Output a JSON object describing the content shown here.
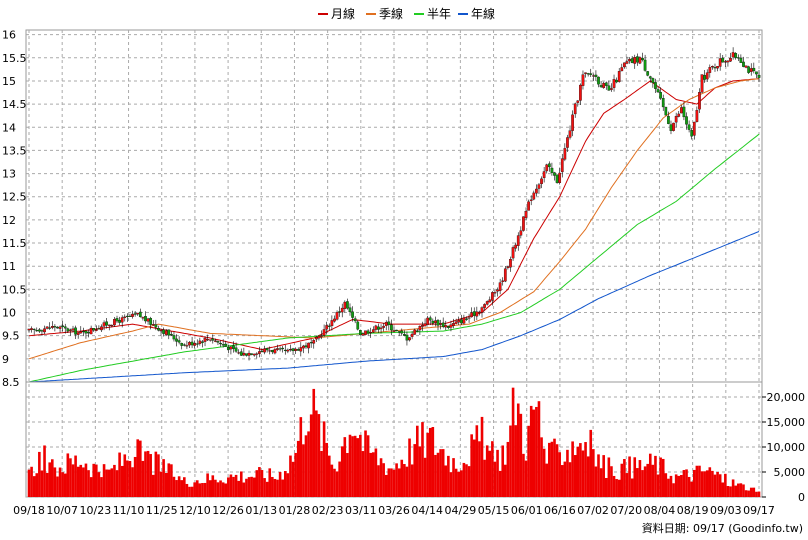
{
  "chart_data": [
    {
      "type": "candlestick",
      "legend": [
        {
          "name": "月線",
          "color": "#cc0000"
        },
        {
          "name": "季線",
          "color": "#e07020"
        },
        {
          "name": "半年",
          "color": "#22cc22"
        },
        {
          "name": "年線",
          "color": "#1155cc"
        }
      ],
      "legend_position": "top-center",
      "yticks": [
        "16",
        "15.5",
        "15",
        "14.5",
        "14",
        "13.5",
        "13",
        "12.5",
        "12",
        "11.5",
        "11",
        "10.5",
        "10",
        "9.5",
        "9",
        "8.5"
      ],
      "ytick_values": [
        16,
        15.5,
        15,
        14.5,
        14,
        13.5,
        13,
        12.5,
        12,
        11.5,
        11,
        10.5,
        10,
        9.5,
        9,
        8.5
      ],
      "ylim": [
        8.5,
        16.1
      ],
      "grid": true,
      "colors": {
        "up": "#ee1111",
        "down": "#119911"
      },
      "close_key": [
        [
          0,
          9.6
        ],
        [
          10,
          9.7
        ],
        [
          20,
          9.55
        ],
        [
          30,
          9.75
        ],
        [
          42,
          9.95
        ],
        [
          52,
          9.6
        ],
        [
          60,
          9.3
        ],
        [
          70,
          9.45
        ],
        [
          82,
          9.1
        ],
        [
          92,
          9.2
        ],
        [
          100,
          9.15
        ],
        [
          110,
          9.35
        ],
        [
          116,
          9.75
        ],
        [
          122,
          10.2
        ],
        [
          128,
          9.55
        ],
        [
          138,
          9.75
        ],
        [
          146,
          9.45
        ],
        [
          154,
          9.85
        ],
        [
          162,
          9.7
        ],
        [
          170,
          9.9
        ],
        [
          176,
          10.15
        ],
        [
          182,
          10.6
        ],
        [
          188,
          11.5
        ],
        [
          194,
          12.5
        ],
        [
          200,
          13.15
        ],
        [
          204,
          12.85
        ],
        [
          210,
          14.2
        ],
        [
          214,
          15.1
        ],
        [
          218,
          15.15
        ],
        [
          224,
          14.75
        ],
        [
          230,
          15.35
        ],
        [
          236,
          15.5
        ],
        [
          240,
          15.1
        ],
        [
          244,
          14.55
        ],
        [
          248,
          14.0
        ],
        [
          252,
          14.4
        ],
        [
          256,
          13.75
        ],
        [
          260,
          15.05
        ],
        [
          266,
          15.4
        ],
        [
          270,
          15.5
        ],
        [
          274,
          15.55
        ],
        [
          278,
          15.25
        ],
        [
          282,
          15.05
        ]
      ],
      "ma_key": {
        "月線": [
          [
            0,
            9.5
          ],
          [
            20,
            9.6
          ],
          [
            40,
            9.75
          ],
          [
            50,
            9.65
          ],
          [
            70,
            9.45
          ],
          [
            90,
            9.2
          ],
          [
            110,
            9.45
          ],
          [
            125,
            9.85
          ],
          [
            140,
            9.75
          ],
          [
            160,
            9.75
          ],
          [
            175,
            10.0
          ],
          [
            185,
            10.5
          ],
          [
            195,
            11.6
          ],
          [
            205,
            12.5
          ],
          [
            215,
            13.7
          ],
          [
            222,
            14.3
          ],
          [
            230,
            14.6
          ],
          [
            240,
            15.0
          ],
          [
            250,
            14.6
          ],
          [
            258,
            14.5
          ],
          [
            265,
            14.85
          ],
          [
            272,
            15.0
          ],
          [
            282,
            15.05
          ]
        ],
        "季線": [
          [
            0,
            9.0
          ],
          [
            20,
            9.35
          ],
          [
            40,
            9.6
          ],
          [
            50,
            9.75
          ],
          [
            70,
            9.55
          ],
          [
            90,
            9.5
          ],
          [
            110,
            9.45
          ],
          [
            130,
            9.55
          ],
          [
            150,
            9.65
          ],
          [
            170,
            9.75
          ],
          [
            182,
            10.0
          ],
          [
            195,
            10.45
          ],
          [
            205,
            11.1
          ],
          [
            215,
            11.8
          ],
          [
            225,
            12.7
          ],
          [
            235,
            13.5
          ],
          [
            245,
            14.2
          ],
          [
            255,
            14.6
          ],
          [
            265,
            14.85
          ],
          [
            275,
            15.0
          ],
          [
            282,
            15.05
          ]
        ],
        "半年": [
          [
            0,
            8.5
          ],
          [
            20,
            8.75
          ],
          [
            40,
            8.95
          ],
          [
            60,
            9.15
          ],
          [
            80,
            9.3
          ],
          [
            100,
            9.45
          ],
          [
            130,
            9.55
          ],
          [
            160,
            9.6
          ],
          [
            175,
            9.75
          ],
          [
            190,
            10.0
          ],
          [
            205,
            10.5
          ],
          [
            220,
            11.2
          ],
          [
            235,
            11.9
          ],
          [
            250,
            12.4
          ],
          [
            265,
            13.1
          ],
          [
            282,
            13.85
          ]
        ],
        "年線": [
          [
            0,
            8.5
          ],
          [
            30,
            8.6
          ],
          [
            60,
            8.7
          ],
          [
            100,
            8.8
          ],
          [
            130,
            8.95
          ],
          [
            160,
            9.05
          ],
          [
            175,
            9.2
          ],
          [
            190,
            9.5
          ],
          [
            205,
            9.85
          ],
          [
            220,
            10.3
          ],
          [
            240,
            10.8
          ],
          [
            260,
            11.25
          ],
          [
            282,
            11.75
          ]
        ]
      }
    },
    {
      "type": "bar",
      "yticks": [
        "20,000",
        "15,000",
        "10,000",
        "5,000",
        "0"
      ],
      "ytick_values": [
        20000,
        15000,
        10000,
        5000,
        0
      ],
      "ylim": [
        0,
        23000
      ],
      "grid": true,
      "color": "#ee0000",
      "volume_key": [
        [
          0,
          4500
        ],
        [
          5,
          9500
        ],
        [
          8,
          6000
        ],
        [
          20,
          8500
        ],
        [
          30,
          5000
        ],
        [
          40,
          10000
        ],
        [
          52,
          6500
        ],
        [
          60,
          3500
        ],
        [
          75,
          4500
        ],
        [
          90,
          5000
        ],
        [
          96,
          4500
        ],
        [
          103,
          10000
        ],
        [
          108,
          22000
        ],
        [
          113,
          14000
        ],
        [
          118,
          7000
        ],
        [
          125,
          17500
        ],
        [
          130,
          11000
        ],
        [
          140,
          6500
        ],
        [
          150,
          12000
        ],
        [
          155,
          13000
        ],
        [
          165,
          7500
        ],
        [
          175,
          13000
        ],
        [
          180,
          8000
        ],
        [
          185,
          11500
        ],
        [
          188,
          22500
        ],
        [
          192,
          12000
        ],
        [
          196,
          21000
        ],
        [
          200,
          8500
        ],
        [
          208,
          11000
        ],
        [
          215,
          13000
        ],
        [
          220,
          8000
        ],
        [
          225,
          6000
        ],
        [
          232,
          6500
        ],
        [
          242,
          7500
        ],
        [
          250,
          4500
        ],
        [
          255,
          5000
        ],
        [
          262,
          6000
        ],
        [
          270,
          3500
        ],
        [
          278,
          2000
        ],
        [
          282,
          1000
        ]
      ]
    }
  ],
  "x_labels": [
    "09/18",
    "10/07",
    "10/23",
    "11/10",
    "11/25",
    "12/10",
    "12/26",
    "01/13",
    "01/28",
    "02/23",
    "03/11",
    "03/26",
    "04/14",
    "04/29",
    "05/15",
    "06/01",
    "06/16",
    "07/02",
    "07/20",
    "08/04",
    "08/19",
    "09/03",
    "09/17"
  ],
  "footer": "資料日期: 09/17  (Goodinfo.tw)"
}
